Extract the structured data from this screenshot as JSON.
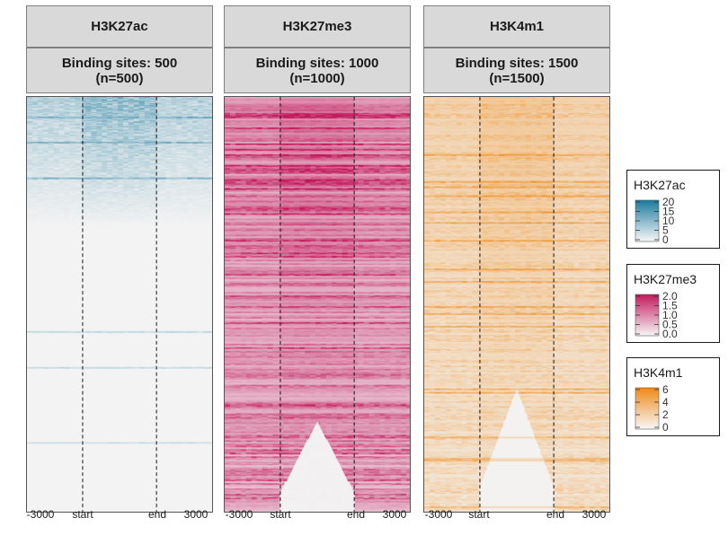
{
  "chart_data": {
    "type": "heatmap",
    "panels": [
      {
        "title": "H3K27ac",
        "subtitle_line1": "Binding sites: 500",
        "subtitle_line2": "(n=500)",
        "color": "#1b7a9e"
      },
      {
        "title": "H3K27me3",
        "subtitle_line1": "Binding sites: 1000",
        "subtitle_line2": "(n=1000)",
        "color": "#c2185b"
      },
      {
        "title": "H3K4m1",
        "subtitle_line1": "Binding sites: 1500",
        "subtitle_line2": "(n=1500)",
        "color": "#ef8a17"
      }
    ],
    "x_ticks": [
      "-3000",
      "start",
      "end",
      "3000"
    ],
    "x_tick_values": [
      -3000,
      "start",
      "end",
      3000
    ],
    "legends": [
      {
        "title": "H3K27ac",
        "color": "#1b7a9e",
        "ticks": [
          "20",
          "15",
          "10",
          "5",
          "0"
        ],
        "range": [
          0,
          20
        ]
      },
      {
        "title": "H3K27me3",
        "color": "#c2185b",
        "ticks": [
          "2.0",
          "1.5",
          "1.0",
          "0.5",
          "0.0"
        ],
        "range": [
          0,
          2.0
        ]
      },
      {
        "title": "H3K4m1",
        "color": "#ef8a17",
        "ticks": [
          "6",
          "4",
          "2",
          "0"
        ],
        "range": [
          0,
          6
        ]
      }
    ]
  }
}
